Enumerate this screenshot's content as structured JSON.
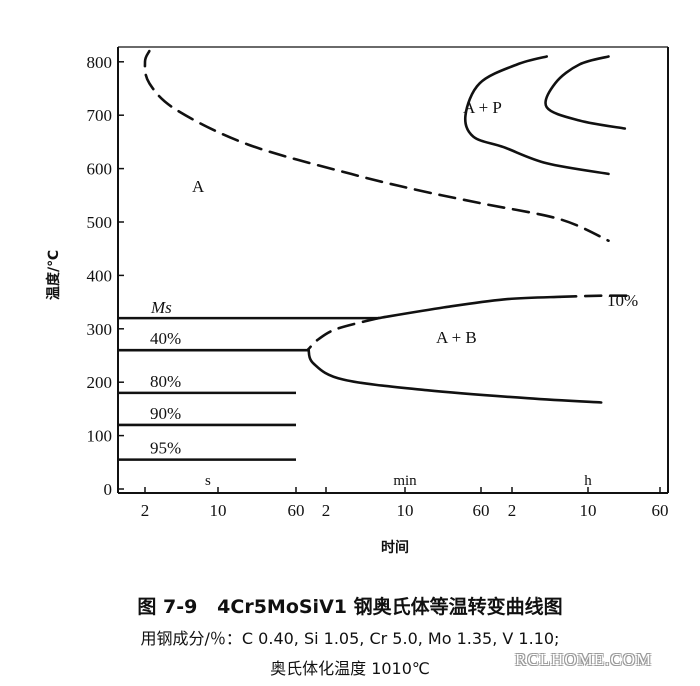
{
  "chart_data": {
    "type": "line",
    "title": "",
    "ylabel": "温度/℃",
    "xlabel": "时间",
    "ylim": [
      0,
      830
    ],
    "y_ticks": [
      "0",
      "100",
      "200",
      "300",
      "400",
      "500",
      "600",
      "700",
      "800"
    ],
    "y_tick_values": [
      0,
      100,
      200,
      300,
      400,
      500,
      600,
      700,
      800
    ],
    "x_scale": "log, segmented seconds / minutes / hours",
    "x_ticks": [
      "2",
      "10",
      "60",
      "2",
      "10",
      "60",
      "2",
      "10",
      "60"
    ],
    "x_tick_seconds": [
      2,
      10,
      60,
      120,
      600,
      3600,
      7200,
      36000,
      216000
    ],
    "x_units": [
      "s",
      "min",
      "h"
    ],
    "regions": [
      "A",
      "A + P",
      "A + B"
    ],
    "ms_label": "Ms",
    "ms_temp_C": 320,
    "isothermal_lines": [
      {
        "label": "40%",
        "temp_C": 260,
        "end_s": 80
      },
      {
        "label": "80%",
        "temp_C": 180,
        "end_s": 60
      },
      {
        "label": "90%",
        "temp_C": 120,
        "end_s": 60
      },
      {
        "label": "95%",
        "temp_C": 55,
        "end_s": 60
      }
    ],
    "series_labels": [
      "10%"
    ],
    "series": [
      {
        "style": "dashed",
        "points": [
          [
            2.2,
            820
          ],
          [
            2,
            800
          ],
          [
            2.2,
            760
          ],
          [
            4,
            710
          ],
          [
            20,
            645
          ],
          [
            200,
            590
          ],
          [
            800,
            560
          ],
          [
            3600,
            535
          ],
          [
            20000,
            505
          ],
          [
            60000,
            465
          ]
        ]
      },
      {
        "style": "solid",
        "points": [
          [
            60000,
            590
          ],
          [
            15000,
            610
          ],
          [
            6000,
            640
          ],
          [
            3000,
            660
          ],
          [
            2500,
            700
          ],
          [
            3500,
            760
          ],
          [
            8000,
            795
          ],
          [
            15000,
            810
          ]
        ]
      },
      {
        "style": "solid",
        "points": [
          [
            90000,
            675
          ],
          [
            30000,
            690
          ],
          [
            15000,
            715
          ],
          [
            18000,
            760
          ],
          [
            30000,
            795
          ],
          [
            60000,
            810
          ]
        ]
      },
      {
        "style": "solid",
        "points": [
          [
            350,
            320
          ],
          [
            1500,
            340
          ],
          [
            6000,
            355
          ],
          [
            20000,
            360
          ]
        ]
      },
      {
        "style": "dashed",
        "points": [
          [
            20000,
            360
          ],
          [
            50000,
            362
          ],
          [
            100000,
            362
          ]
        ]
      },
      {
        "style": "dashed",
        "points": [
          [
            350,
            320
          ],
          [
            150,
            300
          ],
          [
            100,
            280
          ],
          [
            80,
            262
          ]
        ]
      },
      {
        "style": "solid",
        "points": [
          [
            80,
            262
          ],
          [
            90,
            235
          ],
          [
            170,
            205
          ],
          [
            1000,
            185
          ],
          [
            10000,
            170
          ],
          [
            50000,
            162
          ]
        ]
      }
    ]
  },
  "caption": {
    "title": "图 7-9   4Cr5MoSiV1 钢奥氏体等温转变曲线图",
    "composition": "用钢成分/％：C 0.40, Si 1.05, Cr 5.0, Mo 1.35, V 1.10;",
    "austenitizing": "奥氏体化温度 1010℃"
  },
  "watermark": "RCLHOME.COM"
}
